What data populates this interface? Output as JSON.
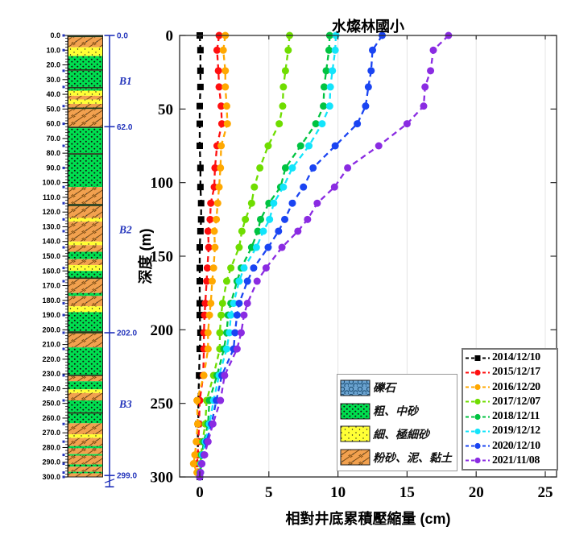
{
  "title": "水燦林國小",
  "colors": {
    "frame": "#2a2a2a",
    "grid": "#e4e4e4",
    "bracket_blue": "#2233bb",
    "separator_dark": "#233b18"
  },
  "lithology": {
    "depth_axis": {
      "min": 0,
      "max": 300,
      "label_step": 10,
      "minor_step": 2,
      "decimals": 1
    },
    "types": {
      "gravel": {
        "label": "礫石",
        "fill": "#6ba3d0",
        "pattern": "circles"
      },
      "coarse": {
        "label": "粗、中砂",
        "fill": "#00df4f",
        "pattern": "dots"
      },
      "fine": {
        "label": "細、極細砂",
        "fill": "#ffff35",
        "pattern": "fine-dots"
      },
      "clay": {
        "label": "粉砂、泥、黏土",
        "fill": "#f2a14f",
        "pattern": "hatch"
      }
    },
    "sections": [
      {
        "label": "B1",
        "from": 0,
        "to": 62
      },
      {
        "label": "B2",
        "from": 62,
        "to": 202
      },
      {
        "label": "B3",
        "from": 202,
        "to": 299
      }
    ],
    "section_markers": [
      {
        "label": "0.0",
        "depth": 0
      },
      {
        "label": "62.0",
        "depth": 62
      },
      {
        "label": "202.0",
        "depth": 202
      },
      {
        "label": "299.0",
        "depth": 299
      }
    ],
    "layers": [
      [
        0,
        1.2,
        "sep"
      ],
      [
        1.2,
        8,
        "clay"
      ],
      [
        8,
        14,
        "fine"
      ],
      [
        14,
        23,
        "coarse"
      ],
      [
        23,
        24,
        "sep"
      ],
      [
        24,
        35,
        "coarse"
      ],
      [
        35,
        36,
        "sep"
      ],
      [
        36,
        37.5,
        "coarse"
      ],
      [
        37.5,
        41,
        "fine"
      ],
      [
        41,
        43.5,
        "clay"
      ],
      [
        43.5,
        46.5,
        "fine"
      ],
      [
        46.5,
        49,
        "clay"
      ],
      [
        49,
        50,
        "sep"
      ],
      [
        50,
        62,
        "clay"
      ],
      [
        62,
        63,
        "sep"
      ],
      [
        63,
        80,
        "coarse"
      ],
      [
        80,
        81,
        "sep"
      ],
      [
        81,
        103,
        "coarse"
      ],
      [
        103,
        114.5,
        "clay"
      ],
      [
        114.5,
        116,
        "sep"
      ],
      [
        116,
        124,
        "clay"
      ],
      [
        124,
        126.5,
        "fine"
      ],
      [
        126.5,
        140,
        "clay"
      ],
      [
        140,
        142.5,
        "fine"
      ],
      [
        142.5,
        147,
        "clay"
      ],
      [
        147,
        152,
        "coarse"
      ],
      [
        152,
        156,
        "clay"
      ],
      [
        156,
        160,
        "fine"
      ],
      [
        160,
        164.5,
        "coarse"
      ],
      [
        164.5,
        165.5,
        "sep"
      ],
      [
        165.5,
        175,
        "clay"
      ],
      [
        175,
        177,
        "coarse"
      ],
      [
        177,
        184,
        "clay"
      ],
      [
        184,
        188,
        "fine"
      ],
      [
        188,
        201,
        "coarse"
      ],
      [
        201,
        202.5,
        "sep"
      ],
      [
        202.5,
        212,
        "clay"
      ],
      [
        212,
        230.5,
        "coarse"
      ],
      [
        230.5,
        231.5,
        "sep"
      ],
      [
        231.5,
        235,
        "clay"
      ],
      [
        235,
        240.5,
        "coarse"
      ],
      [
        240.5,
        243,
        "fine"
      ],
      [
        243,
        248,
        "clay"
      ],
      [
        248,
        256,
        "coarse"
      ],
      [
        256,
        257,
        "sep"
      ],
      [
        257,
        263.5,
        "coarse"
      ],
      [
        263.5,
        271,
        "clay"
      ],
      [
        271,
        273.5,
        "fine"
      ],
      [
        273.5,
        279,
        "clay"
      ],
      [
        279,
        280.5,
        "coarse"
      ],
      [
        280.5,
        284.5,
        "clay"
      ],
      [
        284.5,
        285.5,
        "coarse"
      ],
      [
        285.5,
        291.5,
        "clay"
      ],
      [
        291.5,
        293,
        "coarse"
      ],
      [
        293,
        296.5,
        "clay"
      ],
      [
        296.5,
        297.5,
        "coarse"
      ],
      [
        297.5,
        300,
        "clay"
      ]
    ]
  },
  "chart": {
    "x_axis": {
      "label": "相對井底累積壓縮量 (cm)",
      "ticks": [
        0,
        5,
        10,
        15,
        20,
        25
      ]
    },
    "y_axis": {
      "label": "深度 (m)",
      "ticks": [
        0,
        50,
        100,
        150,
        200,
        250,
        300
      ]
    }
  },
  "chart_data": {
    "type": "line",
    "title": "水燦林國小",
    "xlabel": "相對井底累積壓縮量 (cm)",
    "ylabel": "深度 (m)",
    "xlim": [
      -1.5,
      25.8
    ],
    "ylim": [
      0,
      300
    ],
    "y_axis_direction": "reversed (depth increases downward)",
    "legend_position": "lower right",
    "grid": "vertical only",
    "depths_m": [
      0,
      10,
      24,
      35,
      48,
      60,
      75,
      90,
      103,
      114,
      125,
      133,
      144,
      158,
      167,
      182,
      190,
      202,
      213,
      231,
      248,
      264,
      276,
      285,
      291,
      297,
      300
    ],
    "series": [
      {
        "name": "2014/12/10",
        "color": "#000000",
        "marker": "square",
        "values": [
          0.0,
          0.05,
          0.05,
          0.05,
          0.0,
          0.0,
          0.0,
          0.05,
          0.05,
          0.1,
          0.1,
          0.05,
          0.0,
          0.0,
          0.0,
          0.0,
          0.0,
          0.05,
          0.0,
          -0.05,
          -0.1,
          -0.1,
          -0.15,
          -0.1,
          -0.1,
          -0.05,
          0.0
        ]
      },
      {
        "name": "2015/12/17",
        "color": "#ff0f0f",
        "marker": "circle",
        "values": [
          1.4,
          1.25,
          1.35,
          1.4,
          1.55,
          1.6,
          1.25,
          1.1,
          1.05,
          0.8,
          0.75,
          0.6,
          0.65,
          0.55,
          0.5,
          0.4,
          0.35,
          0.3,
          0.3,
          0.25,
          0.0,
          -0.05,
          -0.1,
          -0.15,
          -0.2,
          -0.1,
          0.0
        ]
      },
      {
        "name": "2016/12/20",
        "color": "#ffa800",
        "marker": "circle",
        "values": [
          1.85,
          1.7,
          1.85,
          1.85,
          1.95,
          2.0,
          1.55,
          1.5,
          1.4,
          1.3,
          1.2,
          1.05,
          1.1,
          1.0,
          0.9,
          0.8,
          0.7,
          0.6,
          0.6,
          0.3,
          -0.2,
          -0.15,
          -0.25,
          -0.35,
          -0.45,
          -0.2,
          0.0
        ]
      },
      {
        "name": "2017/12/07",
        "color": "#6fdd00",
        "marker": "circle",
        "values": [
          6.5,
          6.4,
          6.2,
          6.05,
          6.0,
          5.75,
          4.95,
          4.35,
          3.95,
          3.75,
          3.3,
          3.05,
          2.85,
          2.25,
          1.95,
          1.65,
          1.55,
          1.45,
          1.45,
          1.0,
          0.5,
          0.4,
          0.2,
          0.1,
          0.05,
          0.0,
          0.0
        ]
      },
      {
        "name": "2018/12/11",
        "color": "#00c341",
        "marker": "circle",
        "values": [
          9.4,
          9.35,
          9.15,
          9.0,
          8.95,
          8.4,
          7.3,
          6.2,
          5.85,
          5.0,
          4.4,
          4.2,
          3.75,
          3.0,
          2.7,
          2.25,
          2.05,
          1.95,
          1.75,
          1.25,
          0.7,
          0.6,
          0.3,
          0.15,
          0.1,
          0.05,
          0.0
        ]
      },
      {
        "name": "2019/12/12",
        "color": "#12e4fb",
        "marker": "circle",
        "values": [
          9.85,
          9.8,
          9.6,
          9.45,
          9.4,
          8.85,
          7.9,
          6.7,
          6.05,
          5.35,
          5.05,
          4.6,
          4.1,
          3.2,
          2.85,
          2.45,
          2.25,
          2.15,
          1.95,
          1.4,
          1.0,
          0.7,
          0.4,
          0.2,
          0.1,
          0.05,
          0.0
        ]
      },
      {
        "name": "2020/12/10",
        "color": "#1a44f2",
        "marker": "circle",
        "values": [
          13.2,
          12.5,
          12.4,
          12.2,
          12.0,
          11.4,
          9.8,
          8.2,
          7.5,
          6.7,
          6.15,
          5.7,
          4.95,
          3.9,
          3.45,
          2.85,
          2.7,
          2.55,
          2.45,
          1.6,
          1.2,
          0.85,
          0.5,
          0.3,
          0.15,
          0.05,
          0.0
        ]
      },
      {
        "name": "2021/11/08",
        "color": "#8a2be2",
        "marker": "circle",
        "values": [
          18.0,
          16.9,
          16.7,
          16.3,
          16.2,
          15.0,
          12.95,
          10.7,
          9.75,
          8.5,
          7.8,
          7.1,
          5.95,
          4.8,
          4.15,
          3.45,
          3.2,
          3.0,
          2.7,
          1.8,
          1.5,
          0.95,
          0.6,
          0.35,
          0.15,
          0.05,
          0.0
        ]
      }
    ]
  }
}
